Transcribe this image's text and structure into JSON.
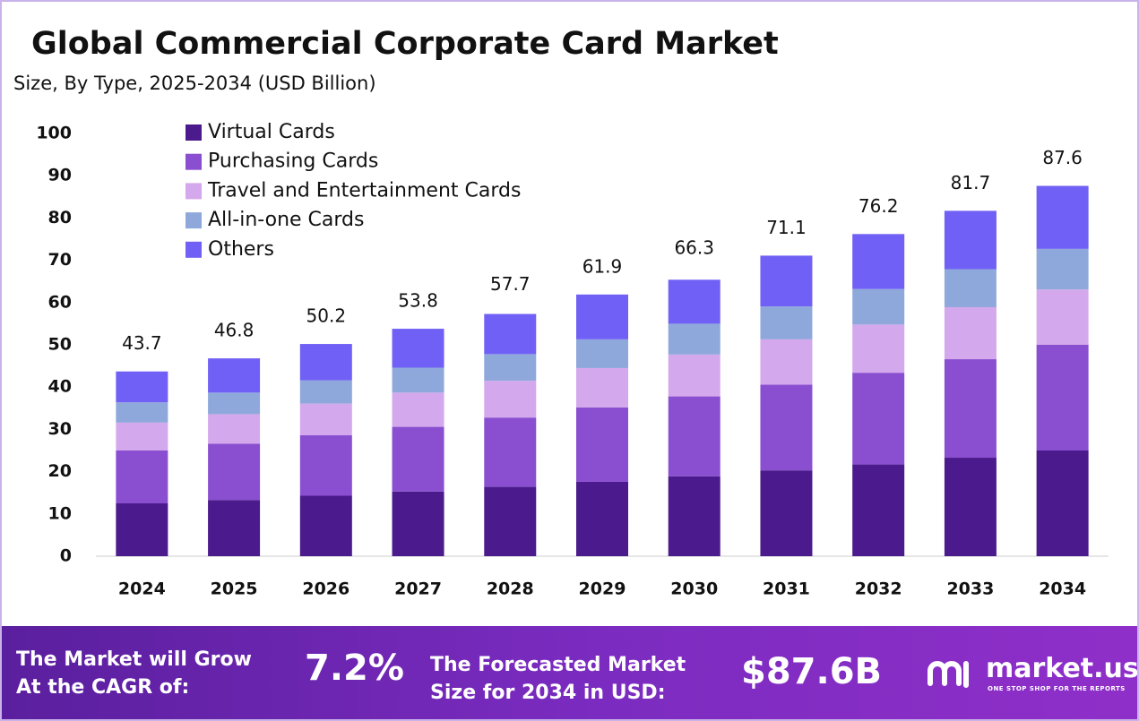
{
  "chart_data": {
    "type": "stacked_bar",
    "title": "Global Commercial Corporate Card Market",
    "subtitle": "Size, By Type, 2025-2034 (USD Billion)",
    "categories": [
      "2024",
      "2025",
      "2026",
      "2027",
      "2028",
      "2029",
      "2030",
      "2031",
      "2032",
      "2033",
      "2034"
    ],
    "series": [
      {
        "name": "Virtual Cards",
        "color": "#4b1a8c",
        "values": [
          12.5,
          13.3,
          14.3,
          15.3,
          16.4,
          17.6,
          18.9,
          20.3,
          21.7,
          23.3,
          25.0
        ]
      },
      {
        "name": "Purchasing Cards",
        "color": "#8a4fd0",
        "values": [
          12.5,
          13.3,
          14.3,
          15.3,
          16.4,
          17.6,
          18.9,
          20.3,
          21.7,
          23.3,
          25.0
        ]
      },
      {
        "name": "Travel and Entertainment Cards",
        "color": "#d4a8ec",
        "values": [
          6.6,
          7.0,
          7.5,
          8.1,
          8.7,
          9.3,
          9.9,
          10.7,
          11.4,
          12.3,
          13.1
        ]
      },
      {
        "name": "All-in-one Cards",
        "color": "#8fa8dc",
        "values": [
          4.8,
          5.1,
          5.5,
          5.9,
          6.3,
          6.8,
          7.3,
          7.8,
          8.4,
          9.0,
          9.6
        ]
      },
      {
        "name": "Others",
        "color": "#7060f5",
        "values": [
          7.3,
          8.1,
          8.6,
          9.2,
          9.5,
          10.6,
          10.4,
          12.0,
          13.0,
          13.8,
          14.9
        ]
      }
    ],
    "totals": [
      43.7,
      46.8,
      50.2,
      53.8,
      57.7,
      61.9,
      66.3,
      71.1,
      76.2,
      81.7,
      87.6
    ],
    "ylim": [
      0,
      100
    ],
    "yticks": [
      0,
      10,
      20,
      30,
      40,
      50,
      60,
      70,
      80,
      90,
      100
    ],
    "grid": false
  },
  "footer": {
    "cagr_label": "The Market will Grow At the CAGR of:",
    "cagr": "7.2%",
    "forecast_label": "The Forecasted Market Size for 2034 in USD:",
    "forecast": "$87.6B",
    "brand": "market.us",
    "tagline": "ONE STOP SHOP FOR THE REPORTS"
  }
}
